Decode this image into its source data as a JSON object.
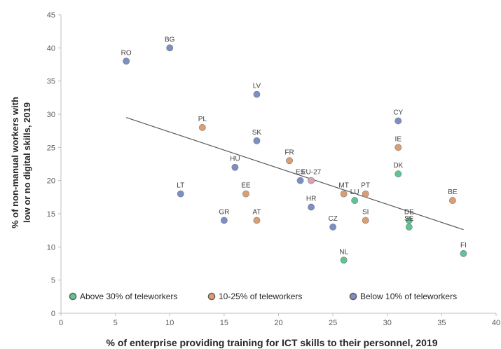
{
  "chart_data": {
    "type": "scatter",
    "xlabel": "% of enterprise providing training for ICT skills to their personnel, 2019",
    "ylabel_lines": [
      "% of non-manual workers with",
      "low or no digital skills, 2019"
    ],
    "xlim": [
      0,
      40
    ],
    "ylim": [
      0,
      45
    ],
    "x_ticks": [
      0,
      5,
      10,
      15,
      20,
      25,
      30,
      35,
      40
    ],
    "y_ticks": [
      0,
      5,
      10,
      15,
      20,
      25,
      30,
      35,
      40,
      45
    ],
    "grid": false,
    "legend_position": "bottom-inside",
    "series": [
      {
        "name": "Above 30% of teleworkers",
        "color": "#5ec493",
        "points": [
          {
            "label": "DK",
            "x": 31,
            "y": 21
          },
          {
            "label": "LU",
            "x": 27,
            "y": 17
          },
          {
            "label": "DE",
            "x": 32,
            "y": 14
          },
          {
            "label": "SE",
            "x": 32,
            "y": 13
          },
          {
            "label": "NL",
            "x": 26,
            "y": 8
          },
          {
            "label": "FI",
            "x": 37,
            "y": 9
          }
        ]
      },
      {
        "name": "10-25% of teleworkers",
        "color": "#dd9d73",
        "points": [
          {
            "label": "PL",
            "x": 13,
            "y": 28
          },
          {
            "label": "IE",
            "x": 31,
            "y": 25
          },
          {
            "label": "FR",
            "x": 21,
            "y": 23
          },
          {
            "label": "EE",
            "x": 17,
            "y": 18
          },
          {
            "label": "MT",
            "x": 26,
            "y": 18
          },
          {
            "label": "PT",
            "x": 28,
            "y": 18
          },
          {
            "label": "BE",
            "x": 36,
            "y": 17
          },
          {
            "label": "AT",
            "x": 18,
            "y": 14
          },
          {
            "label": "SI",
            "x": 28,
            "y": 14
          }
        ]
      },
      {
        "name": "Below 10% of teleworkers",
        "color": "#7b8fc4",
        "points": [
          {
            "label": "RO",
            "x": 6,
            "y": 38
          },
          {
            "label": "BG",
            "x": 10,
            "y": 40
          },
          {
            "label": "LV",
            "x": 18,
            "y": 33
          },
          {
            "label": "CY",
            "x": 31,
            "y": 29
          },
          {
            "label": "SK",
            "x": 18,
            "y": 26
          },
          {
            "label": "HU",
            "x": 16,
            "y": 22
          },
          {
            "label": "ES",
            "x": 22,
            "y": 20
          },
          {
            "label": "LT",
            "x": 11,
            "y": 18
          },
          {
            "label": "HR",
            "x": 23,
            "y": 16
          },
          {
            "label": "GR",
            "x": 15,
            "y": 14
          },
          {
            "label": "CZ",
            "x": 25,
            "y": 13
          }
        ]
      },
      {
        "name": "EU-27",
        "color": "#d9a0b8",
        "label_color": "#e0302f",
        "in_legend": false,
        "points": [
          {
            "label": "EU-27",
            "x": 23,
            "y": 20
          }
        ]
      }
    ],
    "trendline": {
      "x": [
        6,
        37
      ],
      "y": [
        29.5,
        12.6
      ],
      "color": "#595959"
    }
  }
}
